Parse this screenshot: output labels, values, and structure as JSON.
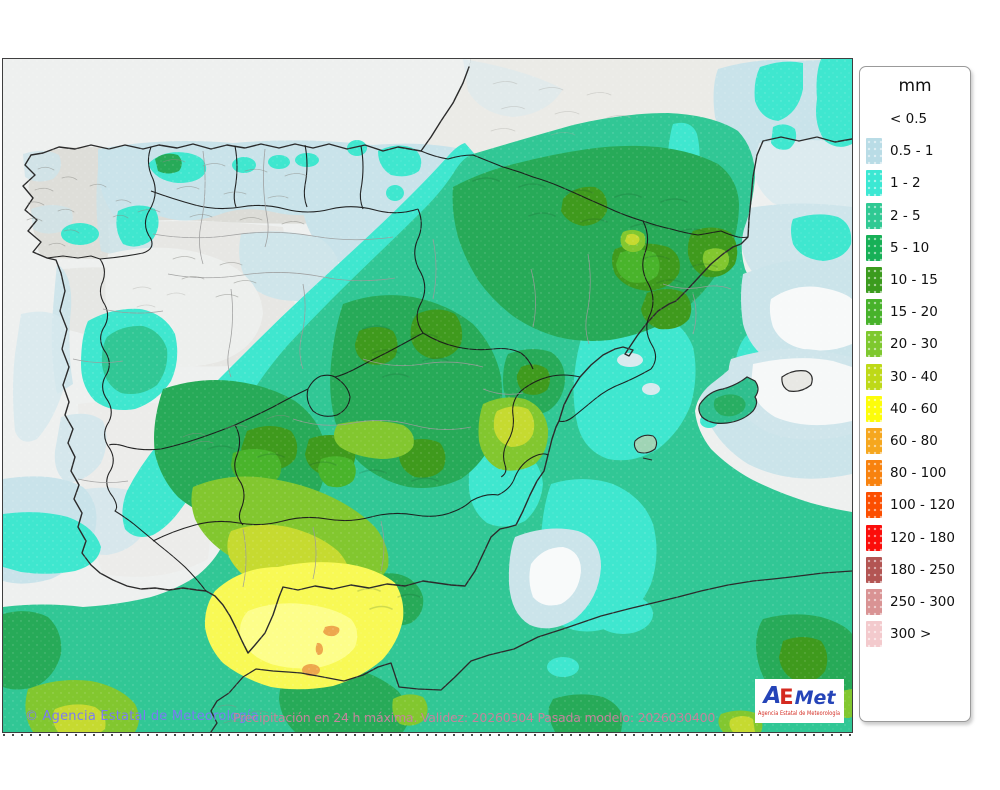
{
  "legend": {
    "title": "mm",
    "entries": [
      {
        "label": "< 0.5",
        "color": null
      },
      {
        "label": "0.5 - 1",
        "color": "#b9dce6"
      },
      {
        "label": "1 - 2",
        "color": "#3be8d3"
      },
      {
        "label": "2 - 5",
        "color": "#2fc993"
      },
      {
        "label": "5 - 10",
        "color": "#17b057"
      },
      {
        "label": "10 - 15",
        "color": "#3b9b1d"
      },
      {
        "label": "15 - 20",
        "color": "#47b22a"
      },
      {
        "label": "20 - 30",
        "color": "#7ec82e"
      },
      {
        "label": "30 - 40",
        "color": "#bed917"
      },
      {
        "label": "40 - 60",
        "color": "#fdfd0a"
      },
      {
        "label": "60 - 80",
        "color": "#f6a71e"
      },
      {
        "label": "80 - 100",
        "color": "#f8820e"
      },
      {
        "label": "100 - 120",
        "color": "#fc4e00"
      },
      {
        "label": "120 - 180",
        "color": "#fb0d0a"
      },
      {
        "label": "180 - 250",
        "color": "#b35553"
      },
      {
        "label": "250 - 300",
        "color": "#d99394"
      },
      {
        "label": "300 >",
        "color": "#f3cacd"
      }
    ]
  },
  "map": {
    "copyright": "© Agencia Estatal de Meteorología",
    "copyright_color": "#7b7bf2",
    "caption": "Precipitación en 24 h máxima. Validez: 20260304 Pasada modelo: 2026030400",
    "caption_color": "#c4849c"
  },
  "logo": {
    "part1": "A",
    "part2": "E",
    "part3": "Met",
    "caption": "Agencia Estatal de Meteorología"
  },
  "map_palette": {
    "sea_below_0_5": "#eef0ef",
    "land_terrain_gray": "#dedeD9",
    "rain_0_5_1": "#c9e3ea",
    "rain_1_2": "#3fe7cf",
    "rain_2_5": "#31c795",
    "rain_5_10": "#27aa58",
    "rain_10_15": "#3f9a1d",
    "rain_15_20": "#49b42b",
    "rain_20_30": "#82c72f",
    "rain_30_40": "#c6da30",
    "rain_40_60": "#f8f955",
    "rain_60_80": "#eda74d"
  }
}
